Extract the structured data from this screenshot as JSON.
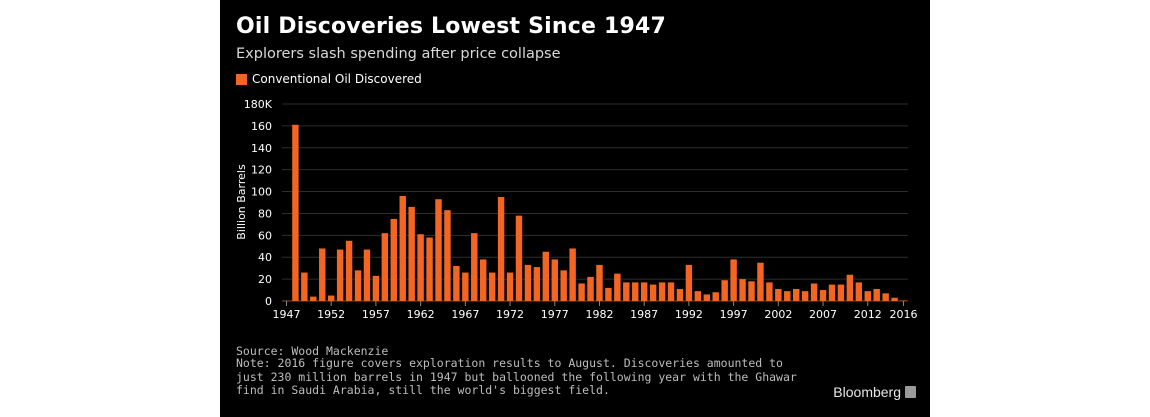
{
  "colors": {
    "background": "#000000",
    "bar": "#f26522",
    "grid": "#2e2e2e",
    "text": "#ffffff"
  },
  "chart_data": {
    "type": "bar",
    "title": "Oil Discoveries Lowest Since 1947",
    "subtitle": "Explorers slash spending after price collapse",
    "ylabel": "Billion Barrels",
    "xlabel": "",
    "grid": true,
    "legend_position": "top-left",
    "ylim": [
      0,
      180
    ],
    "y_ticks": [
      "0",
      "20",
      "40",
      "60",
      "80",
      "100",
      "120",
      "140",
      "160",
      "180K"
    ],
    "x_ticks": [
      "1947",
      "1952",
      "1957",
      "1962",
      "1967",
      "1972",
      "1977",
      "1982",
      "1987",
      "1992",
      "1997",
      "2002",
      "2007",
      "2012",
      "2016"
    ],
    "series": [
      {
        "name": "Conventional Oil Discovered",
        "x": [
          1947,
          1948,
          1949,
          1950,
          1951,
          1952,
          1953,
          1954,
          1955,
          1956,
          1957,
          1958,
          1959,
          1960,
          1961,
          1962,
          1963,
          1964,
          1965,
          1966,
          1967,
          1968,
          1969,
          1970,
          1971,
          1972,
          1973,
          1974,
          1975,
          1976,
          1977,
          1978,
          1979,
          1980,
          1981,
          1982,
          1983,
          1984,
          1985,
          1986,
          1987,
          1988,
          1989,
          1990,
          1991,
          1992,
          1993,
          1994,
          1995,
          1996,
          1997,
          1998,
          1999,
          2000,
          2001,
          2002,
          2003,
          2004,
          2005,
          2006,
          2007,
          2008,
          2009,
          2010,
          2011,
          2012,
          2013,
          2014,
          2015,
          2016
        ],
        "values": [
          0.23,
          161,
          26,
          4,
          48,
          5,
          47,
          55,
          28,
          47,
          23,
          62,
          75,
          96,
          86,
          61,
          58,
          93,
          83,
          32,
          26,
          62,
          38,
          26,
          95,
          26,
          78,
          33,
          31,
          45,
          38,
          28,
          48,
          16,
          22,
          33,
          12,
          25,
          17,
          17,
          17,
          15,
          17,
          17,
          11,
          33,
          9,
          6,
          8,
          19,
          38,
          20,
          18,
          35,
          17,
          11,
          9,
          11,
          9,
          16,
          10,
          15,
          15,
          24,
          17,
          9,
          11,
          7,
          3,
          0.5
        ]
      }
    ]
  },
  "footer": {
    "source": "Source: Wood Mackenzie",
    "note": "Note: 2016 figure covers exploration results to August. Discoveries amounted to just 230 million barrels in 1947 but ballooned the following year with the Ghawar find in Saudi Arabia, still the world's biggest field.",
    "brand": "Bloomberg"
  }
}
